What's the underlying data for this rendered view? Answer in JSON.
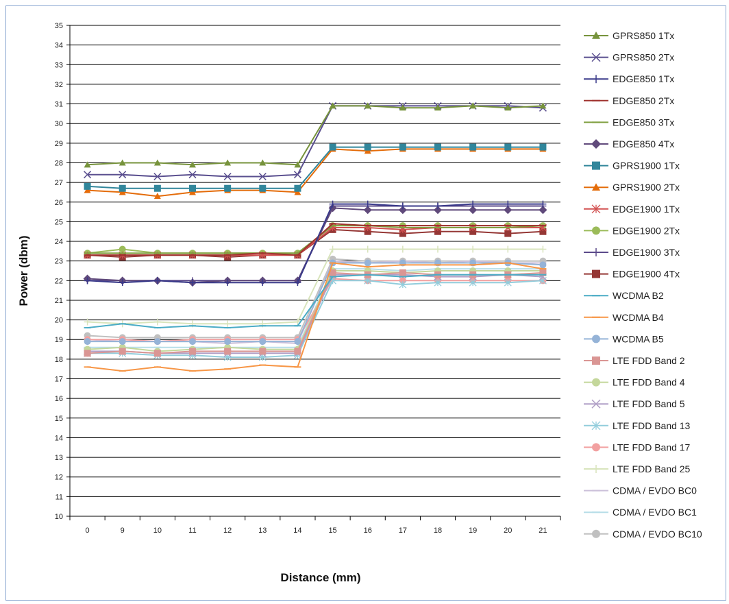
{
  "chart_data": {
    "type": "line",
    "title": "",
    "xlabel": "Distance (mm)",
    "ylabel": "Power (dbm)",
    "categories": [
      "0",
      "9",
      "10",
      "11",
      "12",
      "13",
      "14",
      "15",
      "16",
      "17",
      "18",
      "19",
      "20",
      "21"
    ],
    "ylim": [
      10,
      35
    ],
    "ytick_step": 1,
    "grid": true,
    "legend_position": "right",
    "series": [
      {
        "name": "GPRS850 1Tx",
        "color": "#77933c",
        "marker": "triangle",
        "values": [
          27.9,
          28.0,
          28.0,
          27.9,
          28.0,
          28.0,
          27.9,
          30.9,
          30.9,
          30.8,
          30.8,
          30.9,
          30.8,
          30.9
        ]
      },
      {
        "name": "GPRS850 2Tx",
        "color": "#5a4f8f",
        "marker": "x",
        "values": [
          27.4,
          27.4,
          27.3,
          27.4,
          27.3,
          27.3,
          27.4,
          30.9,
          30.9,
          30.9,
          30.9,
          30.9,
          30.9,
          30.8
        ]
      },
      {
        "name": "EDGE850 1Tx",
        "color": "#3a3a8a",
        "marker": "plus",
        "values": [
          22.0,
          21.9,
          22.0,
          21.9,
          21.9,
          21.9,
          21.9,
          25.9,
          25.9,
          25.8,
          25.8,
          25.9,
          25.9,
          25.9
        ]
      },
      {
        "name": "EDGE850 2Tx",
        "color": "#a0322e",
        "marker": "dash",
        "values": [
          23.3,
          23.3,
          23.3,
          23.3,
          23.3,
          23.4,
          23.3,
          24.9,
          24.8,
          24.8,
          24.8,
          24.8,
          24.8,
          24.8
        ]
      },
      {
        "name": "EDGE850 3Tx",
        "color": "#80a040",
        "marker": "dash",
        "values": [
          23.4,
          23.4,
          23.4,
          23.4,
          23.4,
          23.4,
          23.4,
          24.8,
          24.8,
          24.7,
          24.7,
          24.7,
          24.7,
          24.8
        ]
      },
      {
        "name": "EDGE850 4Tx",
        "color": "#604a7b",
        "marker": "diamond",
        "values": [
          22.1,
          22.0,
          22.0,
          21.9,
          22.0,
          22.0,
          22.0,
          25.7,
          25.6,
          25.6,
          25.6,
          25.6,
          25.6,
          25.6
        ]
      },
      {
        "name": "GPRS1900 1Tx",
        "color": "#31869b",
        "marker": "square",
        "values": [
          26.8,
          26.7,
          26.7,
          26.7,
          26.7,
          26.7,
          26.7,
          28.8,
          28.8,
          28.8,
          28.8,
          28.8,
          28.8,
          28.8
        ]
      },
      {
        "name": "GPRS1900 2Tx",
        "color": "#e46c0a",
        "marker": "triangle",
        "values": [
          26.6,
          26.5,
          26.3,
          26.5,
          26.6,
          26.6,
          26.5,
          28.7,
          28.6,
          28.7,
          28.7,
          28.7,
          28.7,
          28.7
        ]
      },
      {
        "name": "EDGE1900 1Tx",
        "color": "#d25050",
        "marker": "star",
        "values": [
          23.3,
          23.3,
          23.3,
          23.3,
          23.3,
          23.3,
          23.3,
          24.7,
          24.7,
          24.6,
          24.7,
          24.7,
          24.7,
          24.7
        ]
      },
      {
        "name": "EDGE1900 2Tx",
        "color": "#9bbb59",
        "marker": "circle",
        "values": [
          23.4,
          23.6,
          23.4,
          23.4,
          23.4,
          23.4,
          23.4,
          24.8,
          24.8,
          24.8,
          24.8,
          24.8,
          24.8,
          24.8
        ]
      },
      {
        "name": "EDGE1900 3Tx",
        "color": "#5b4a8a",
        "marker": "plus",
        "values": [
          22.0,
          22.0,
          22.0,
          22.0,
          22.0,
          22.0,
          22.0,
          25.8,
          25.8,
          25.8,
          25.8,
          25.8,
          25.8,
          25.8
        ]
      },
      {
        "name": "EDGE1900 4Tx",
        "color": "#953735",
        "marker": "square",
        "values": [
          23.3,
          23.2,
          23.3,
          23.3,
          23.2,
          23.3,
          23.3,
          24.6,
          24.5,
          24.4,
          24.5,
          24.5,
          24.4,
          24.5
        ]
      },
      {
        "name": "WCDMA B2",
        "color": "#4bacc6",
        "marker": "dash",
        "values": [
          19.6,
          19.8,
          19.6,
          19.7,
          19.6,
          19.7,
          19.7,
          22.2,
          22.3,
          22.2,
          22.3,
          22.3,
          22.3,
          22.3
        ]
      },
      {
        "name": "WCDMA B4",
        "color": "#f79646",
        "marker": "dash",
        "values": [
          17.6,
          17.4,
          17.6,
          17.4,
          17.5,
          17.7,
          17.6,
          22.9,
          22.7,
          22.8,
          22.8,
          22.8,
          22.9,
          22.6
        ]
      },
      {
        "name": "WCDMA B5",
        "color": "#95b3d7",
        "marker": "circle",
        "values": [
          18.9,
          18.9,
          18.9,
          18.9,
          18.9,
          18.9,
          18.9,
          22.9,
          22.9,
          22.9,
          22.9,
          22.9,
          22.9,
          22.8
        ]
      },
      {
        "name": "LTE FDD Band 2",
        "color": "#da9694",
        "marker": "square",
        "values": [
          18.3,
          18.4,
          18.3,
          18.4,
          18.4,
          18.4,
          18.4,
          22.4,
          22.3,
          22.4,
          22.3,
          22.3,
          22.3,
          22.4
        ]
      },
      {
        "name": "LTE FDD Band 4",
        "color": "#c4d79b",
        "marker": "circle",
        "values": [
          18.5,
          18.6,
          18.4,
          18.5,
          18.6,
          18.5,
          18.5,
          22.5,
          22.5,
          22.4,
          22.5,
          22.5,
          22.5,
          22.5
        ]
      },
      {
        "name": "LTE FDD Band 5",
        "color": "#b1a0c7",
        "marker": "x",
        "values": [
          18.4,
          18.4,
          18.3,
          18.3,
          18.3,
          18.3,
          18.3,
          22.3,
          22.3,
          22.3,
          22.2,
          22.2,
          22.3,
          22.2
        ]
      },
      {
        "name": "LTE FDD Band 13",
        "color": "#92cddc",
        "marker": "star",
        "values": [
          18.3,
          18.3,
          18.2,
          18.2,
          18.1,
          18.1,
          18.2,
          22.0,
          22.0,
          21.8,
          21.9,
          21.9,
          21.9,
          22.0
        ]
      },
      {
        "name": "LTE FDD Band 17",
        "color": "#f2a0a0",
        "marker": "circle",
        "values": [
          19.0,
          19.0,
          18.9,
          19.0,
          19.0,
          19.0,
          19.0,
          22.1,
          22.0,
          22.0,
          22.0,
          22.0,
          22.0,
          22.0
        ]
      },
      {
        "name": "LTE FDD Band 25",
        "color": "#d8e4bc",
        "marker": "plus",
        "values": [
          19.9,
          19.8,
          19.9,
          19.8,
          19.8,
          19.8,
          19.9,
          23.6,
          23.6,
          23.6,
          23.6,
          23.6,
          23.6,
          23.6
        ]
      },
      {
        "name": "CDMA / EVDO BC0",
        "color": "#ccc0da",
        "marker": "dash",
        "values": [
          19.0,
          18.9,
          18.9,
          18.9,
          18.8,
          18.9,
          18.8,
          23.0,
          22.9,
          23.0,
          22.9,
          23.0,
          22.9,
          22.9
        ]
      },
      {
        "name": "CDMA / EVDO BC1",
        "color": "#b7dee8",
        "marker": "dash",
        "values": [
          18.6,
          18.6,
          18.6,
          18.6,
          18.6,
          18.6,
          18.6,
          22.6,
          22.6,
          22.5,
          22.6,
          22.6,
          22.6,
          22.6
        ]
      },
      {
        "name": "CDMA / EVDO BC10",
        "color": "#c0c0c0",
        "marker": "circle",
        "values": [
          19.2,
          19.1,
          19.1,
          19.1,
          19.1,
          19.1,
          19.1,
          23.1,
          23.0,
          23.0,
          23.0,
          23.0,
          23.0,
          23.0
        ]
      }
    ]
  }
}
